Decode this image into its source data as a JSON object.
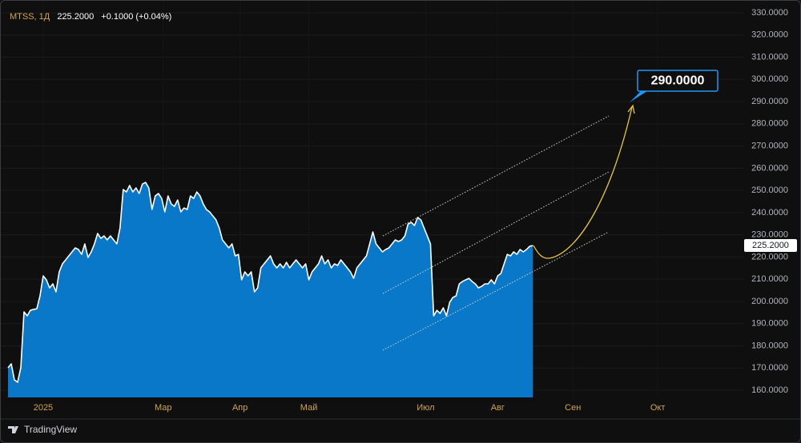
{
  "header": {
    "symbol": "MTSS, 1Д",
    "price": "225.2000",
    "change": "+0.1000 (+0.04%)"
  },
  "footer": {
    "brand": "TradingView"
  },
  "chart_data": {
    "type": "area",
    "series": [
      {
        "name": "MTSS",
        "color": "#ffffff",
        "fill": "#0a78c8",
        "values": [
          170.1,
          171.9,
          164.7,
          163.6,
          170.1,
          195.3,
          193.5,
          196.0,
          196.4,
          196.7,
          202.5,
          211.5,
          209.7,
          206.1,
          207.9,
          204.3,
          213.3,
          216.9,
          218.7,
          220.5,
          222.3,
          224.1,
          223.4,
          221.2,
          225.9,
          219.8,
          222.3,
          225.9,
          230.6,
          228.4,
          229.5,
          227.7,
          229.5,
          227.7,
          225.9,
          233.1,
          250.4,
          249.3,
          252.2,
          249.3,
          251.1,
          248.6,
          252.9,
          253.6,
          251.1,
          241.4,
          247.5,
          248.6,
          246.4,
          240.3,
          247.5,
          243.9,
          242.8,
          245.7,
          240.3,
          242.1,
          241.4,
          247.5,
          246.4,
          249.3,
          247.5,
          243.9,
          241.4,
          240.3,
          238.5,
          236.7,
          233.1,
          227.7,
          225.9,
          224.1,
          225.9,
          220.5,
          221.2,
          209.7,
          213.3,
          211.5,
          213.3,
          204.3,
          206.1,
          215.1,
          216.9,
          218.7,
          220.5,
          216.9,
          215.1,
          216.9,
          215.1,
          217.6,
          215.1,
          216.9,
          218.7,
          216.9,
          215.1,
          216.9,
          209.7,
          213.3,
          215.1,
          216.9,
          220.5,
          216.9,
          218.7,
          215.1,
          216.9,
          216.2,
          218.7,
          216.9,
          215.1,
          213.3,
          210.4,
          215.1,
          216.9,
          218.7,
          220.5,
          225.9,
          231.3,
          225.9,
          224.1,
          222.3,
          223.4,
          224.1,
          225.9,
          227.7,
          227.0,
          227.7,
          229.5,
          234.9,
          235.6,
          234.2,
          237.8,
          236.7,
          233.1,
          229.5,
          225.9,
          193.5,
          196.0,
          194.6,
          197.1,
          193.5,
          199.6,
          201.8,
          202.5,
          207.9,
          209.0,
          209.7,
          210.4,
          209.0,
          207.9,
          206.1,
          206.8,
          207.9,
          207.9,
          209.7,
          207.9,
          211.5,
          212.6,
          216.9,
          221.2,
          220.5,
          222.3,
          221.2,
          223.4,
          222.3,
          223.4,
          224.8,
          225.2
        ]
      }
    ],
    "last_price_label": "225.2000",
    "target_label": "290.0000",
    "xlim": [
      0,
      229
    ],
    "xticks": [
      {
        "value": 11,
        "label": "2025"
      },
      {
        "value": 48.5,
        "label": "Мар"
      },
      {
        "value": 72.5,
        "label": "Апр"
      },
      {
        "value": 94,
        "label": "Май"
      },
      {
        "value": 130.5,
        "label": "Июл"
      },
      {
        "value": 153,
        "label": "Авг"
      },
      {
        "value": 176.5,
        "label": "Сен"
      },
      {
        "value": 203,
        "label": "Окт"
      }
    ],
    "ylim": [
      160,
      330
    ],
    "yticks": [
      {
        "value": 160,
        "label": "160.0000"
      },
      {
        "value": 170,
        "label": "170.0000"
      },
      {
        "value": 180,
        "label": "180.0000"
      },
      {
        "value": 190,
        "label": "190.0000"
      },
      {
        "value": 200,
        "label": "200.0000"
      },
      {
        "value": 210,
        "label": "210.0000"
      },
      {
        "value": 220,
        "label": "220.0000"
      },
      {
        "value": 230,
        "label": "230.0000"
      },
      {
        "value": 240,
        "label": "240.0000"
      },
      {
        "value": 250,
        "label": "250.0000"
      },
      {
        "value": 260,
        "label": "260.0000"
      },
      {
        "value": 270,
        "label": "270.0000"
      },
      {
        "value": 280,
        "label": "280.0000"
      },
      {
        "value": 290,
        "label": "290.0000"
      },
      {
        "value": 300,
        "label": "300.0000"
      },
      {
        "value": 310,
        "label": "310.0000"
      },
      {
        "value": 320,
        "label": "320.0000"
      },
      {
        "value": 330,
        "label": "330.0000"
      }
    ],
    "grid": true
  }
}
